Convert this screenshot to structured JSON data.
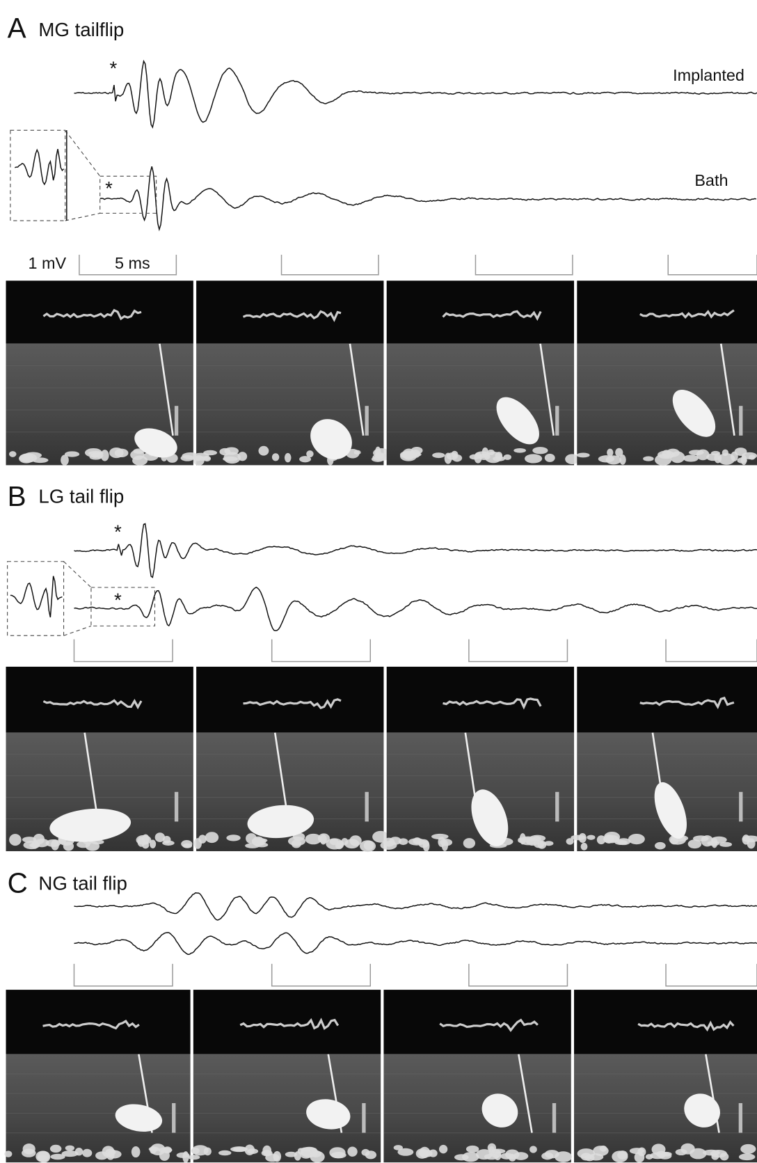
{
  "panels": [
    {
      "letter": "A",
      "title": "MG tailflip",
      "markers": [
        "*",
        "*"
      ],
      "labels": [
        "Implanted",
        "Bath"
      ],
      "scale": [
        "1 mV",
        "5 ms"
      ]
    },
    {
      "letter": "B",
      "title": "LG tail flip",
      "markers": [
        "*",
        "*"
      ]
    },
    {
      "letter": "C",
      "title": "NG tail flip"
    }
  ]
}
